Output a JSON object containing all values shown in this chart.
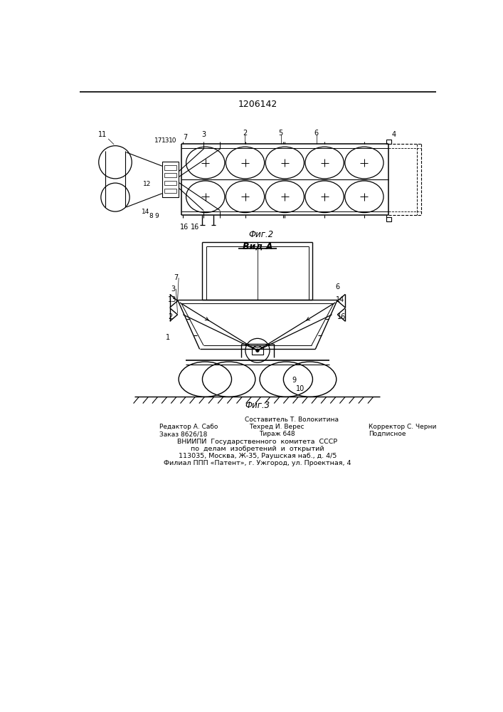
{
  "patent_number": "1206142",
  "fig2_label": "Фиг.2",
  "fig3_label": "Фиг.3",
  "view_label": "Вид А",
  "bottom_text_line1": "Составитель Т. Волокитина",
  "bottom_text_line2_left": "Редактор А. Сабо",
  "bottom_text_line2_mid": "Техред И. Верес",
  "bottom_text_line2_right": "Корректор С. Черни",
  "bottom_text_line3_left": "Заказ 8626/18",
  "bottom_text_line3_mid": "Тираж 648",
  "bottom_text_line3_right": "Подписное",
  "bottom_text_line4": "ВНИИПИ  Государственного  комитета  СССР",
  "bottom_text_line5": "по  делам  изобретений  и  открытий",
  "bottom_text_line6": "113035, Москва, Ж-35, Раушская наб., д. 4/5",
  "bottom_text_line7": "Филиал ППП «Патент», г. Ужгород, ул. Проектная, 4",
  "line_color": "#000000",
  "bg_color": "#ffffff"
}
